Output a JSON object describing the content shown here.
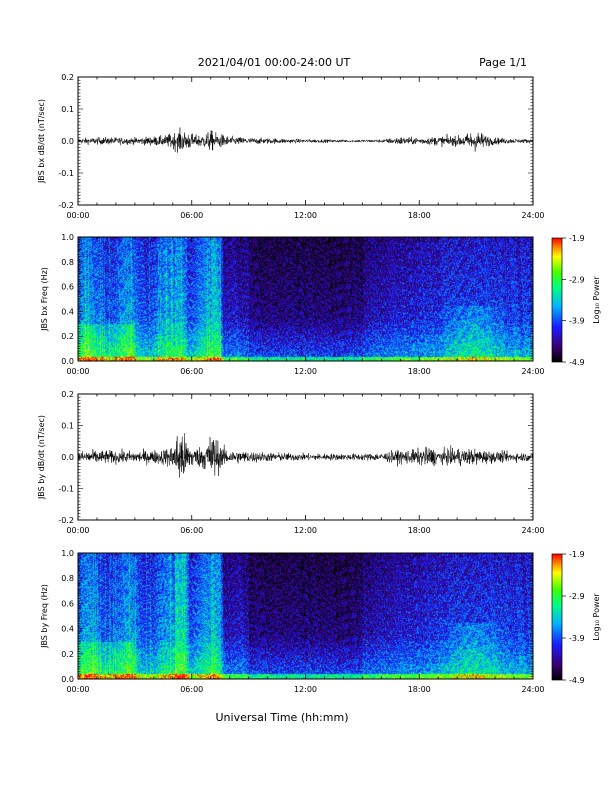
{
  "header": {
    "title": "2021/04/01  00:00-24:00 UT",
    "page": "Page 1/1"
  },
  "footer": {
    "xlabel": "Universal Time (hh:mm)"
  },
  "chart_data": [
    {
      "type": "line",
      "ylabel": "JBS bx dB/dt (nT/sec)",
      "xlabel": "",
      "x_unit": "hours UT",
      "xlim": [
        0,
        24
      ],
      "ylim": [
        -0.2,
        0.2
      ],
      "xticklabels": [
        "00:00",
        "06:00",
        "12:00",
        "18:00",
        "24:00"
      ],
      "yticks": [
        -0.2,
        -0.1,
        0.0,
        0.1,
        0.2
      ],
      "yticklabels": [
        "-0.2",
        "-0.1",
        "0.0",
        "0.1",
        "0.2"
      ],
      "series": [
        {
          "x": [
            0,
            1,
            2,
            3,
            4,
            4.5,
            5,
            5.4,
            5.8,
            6.2,
            6.6,
            7.0,
            7.3,
            8,
            9,
            10,
            11,
            12,
            13,
            14,
            15,
            16,
            16.5,
            17,
            17.5,
            18,
            18.5,
            19,
            19.5,
            20,
            20.5,
            20.8,
            21.2,
            21.5,
            22,
            23,
            24
          ],
          "amplitude": [
            0.012,
            0.015,
            0.016,
            0.014,
            0.02,
            0.022,
            0.035,
            0.048,
            0.04,
            0.025,
            0.03,
            0.045,
            0.035,
            0.02,
            0.014,
            0.012,
            0.01,
            0.008,
            0.007,
            0.006,
            0.006,
            0.007,
            0.012,
            0.018,
            0.015,
            0.015,
            0.016,
            0.02,
            0.022,
            0.02,
            0.03,
            0.045,
            0.04,
            0.025,
            0.015,
            0.01,
            0.008
          ]
        }
      ]
    },
    {
      "type": "heatmap",
      "ylabel": "JBS bx Freq (Hz)",
      "xlabel": "",
      "xlim": [
        0,
        24
      ],
      "ylim": [
        0,
        1
      ],
      "xticklabels": [
        "00:00",
        "06:00",
        "12:00",
        "18:00",
        "24:00"
      ],
      "yticks": [
        0.0,
        0.2,
        0.4,
        0.6,
        0.8,
        1.0
      ],
      "yticklabels": [
        "0.0",
        "0.2",
        "0.4",
        "0.6",
        "0.8",
        "1.0"
      ],
      "colorbar": {
        "label": "Log₁₀ Power",
        "range": [
          -4.9,
          -1.9
        ],
        "ticks": [
          "-1.9",
          "-2.9",
          "-3.9",
          "-4.9"
        ]
      }
    },
    {
      "type": "line",
      "ylabel": "JBS by dB/dt (nT/sec)",
      "xlabel": "",
      "x_unit": "hours UT",
      "xlim": [
        0,
        24
      ],
      "ylim": [
        -0.2,
        0.2
      ],
      "xticklabels": [
        "00:00",
        "06:00",
        "12:00",
        "18:00",
        "24:00"
      ],
      "yticks": [
        -0.2,
        -0.1,
        0.0,
        0.1,
        0.2
      ],
      "yticklabels": [
        "-0.2",
        "-0.1",
        "0.0",
        "0.1",
        "0.2"
      ],
      "series": [
        {
          "x": [
            0,
            1,
            2,
            3,
            4,
            4.5,
            5,
            5.3,
            5.5,
            5.8,
            6.2,
            6.6,
            7.0,
            7.2,
            7.5,
            8,
            9,
            10,
            11,
            12,
            13,
            14,
            15,
            16,
            16.5,
            17,
            17.5,
            18,
            18.5,
            19,
            19.5,
            20,
            20.5,
            21,
            21.5,
            22,
            23,
            24
          ],
          "amplitude": [
            0.025,
            0.03,
            0.028,
            0.025,
            0.03,
            0.035,
            0.05,
            0.12,
            0.13,
            0.06,
            0.04,
            0.05,
            0.1,
            0.11,
            0.05,
            0.03,
            0.025,
            0.02,
            0.018,
            0.015,
            0.015,
            0.014,
            0.015,
            0.018,
            0.025,
            0.03,
            0.03,
            0.035,
            0.045,
            0.03,
            0.035,
            0.04,
            0.035,
            0.035,
            0.03,
            0.025,
            0.02,
            0.018
          ]
        }
      ]
    },
    {
      "type": "heatmap",
      "ylabel": "JBS by Freq (Hz)",
      "xlabel": "Universal Time (hh:mm)",
      "xlim": [
        0,
        24
      ],
      "ylim": [
        0,
        1
      ],
      "xticklabels": [
        "00:00",
        "06:00",
        "12:00",
        "18:00",
        "24:00"
      ],
      "yticks": [
        0.0,
        0.2,
        0.4,
        0.6,
        0.8,
        1.0
      ],
      "yticklabels": [
        "0.0",
        "0.2",
        "0.4",
        "0.6",
        "0.8",
        "1.0"
      ],
      "colorbar": {
        "label": "Log₁₀ Power",
        "range": [
          -4.9,
          -1.9
        ],
        "ticks": [
          "-1.9",
          "-2.9",
          "-3.9",
          "-4.9"
        ]
      }
    }
  ],
  "colors": {
    "trace": "#000000",
    "colormap": [
      "#000000",
      "#3a0070",
      "#1a1aff",
      "#00b4ff",
      "#00ff80",
      "#40ff00",
      "#ffff00",
      "#ff8000",
      "#ff0000"
    ]
  }
}
